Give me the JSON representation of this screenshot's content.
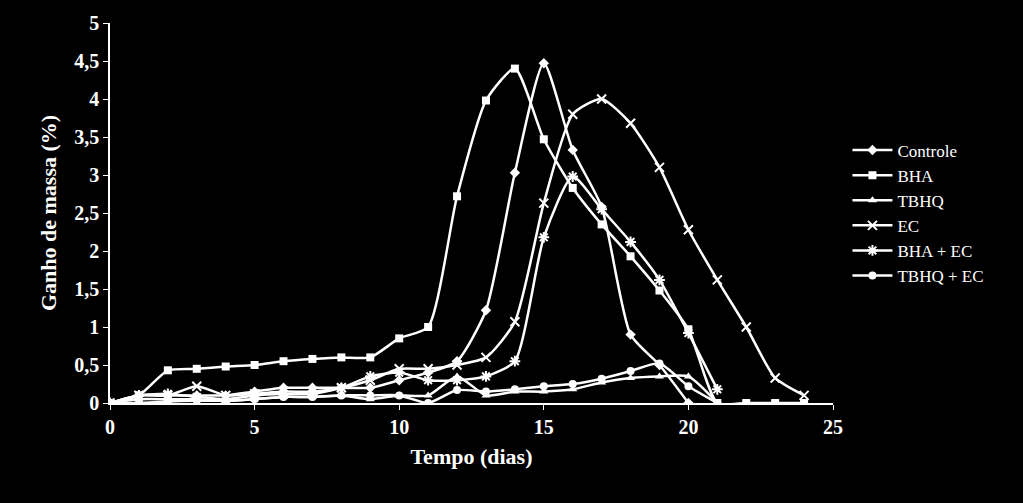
{
  "chart_data": {
    "type": "line",
    "x_label": "Tempo (dias)",
    "y_label": "Ganho de massa (%)",
    "xlim": [
      0,
      25
    ],
    "xticks": [
      0,
      5,
      10,
      15,
      20,
      25
    ],
    "ylim": [
      0,
      5
    ],
    "yticks": [
      0,
      {
        "value": 0.5,
        "label": "0,5"
      },
      1,
      {
        "value": 1.5,
        "label": "1,5"
      },
      2,
      {
        "value": 2.5,
        "label": "2,5"
      },
      3,
      {
        "value": 3.5,
        "label": "3,5"
      },
      4,
      {
        "value": 4.5,
        "label": "4,5"
      },
      5
    ],
    "grid": false,
    "legend": "right",
    "series": [
      {
        "name": "Controle",
        "color": "#ffffff",
        "marker": "diamond",
        "x": [
          0,
          1,
          2,
          3,
          4,
          5,
          6,
          7,
          8,
          9,
          10,
          11,
          12,
          13,
          14,
          15,
          16,
          17,
          18,
          19,
          20
        ],
        "values": [
          0,
          0.1,
          0.1,
          0.1,
          0.1,
          0.15,
          0.2,
          0.2,
          0.2,
          0.2,
          0.3,
          0.4,
          0.55,
          1.22,
          3.03,
          4.47,
          3.33,
          2.58,
          0.9,
          0.5,
          0
        ]
      },
      {
        "name": "BHA",
        "color": "#ffffff",
        "marker": "square",
        "x": [
          0,
          1,
          2,
          3,
          4,
          5,
          6,
          7,
          8,
          9,
          10,
          11,
          12,
          13,
          14,
          15,
          16,
          17,
          18,
          19,
          20,
          21,
          22,
          23,
          24
        ],
        "values": [
          0,
          0.1,
          0.43,
          0.45,
          0.48,
          0.5,
          0.55,
          0.58,
          0.6,
          0.6,
          0.85,
          1.0,
          2.72,
          3.98,
          4.4,
          3.47,
          2.83,
          2.35,
          1.93,
          1.48,
          0.97,
          0,
          0,
          0,
          0
        ]
      },
      {
        "name": "TBHQ",
        "color": "#ffffff",
        "marker": "triangle",
        "x": [
          0,
          1,
          2,
          3,
          4,
          5,
          6,
          7,
          8,
          9,
          10,
          11,
          12,
          13,
          14,
          15,
          16,
          17,
          18,
          19,
          20,
          21
        ],
        "values": [
          0,
          0.05,
          0.05,
          0.05,
          0.03,
          0.05,
          0.08,
          0.08,
          0.1,
          0.05,
          0.1,
          0.1,
          0.35,
          0.1,
          0.15,
          0.15,
          0.18,
          0.27,
          0.33,
          0.35,
          0.35,
          0
        ]
      },
      {
        "name": "EC",
        "color": "#ffffff",
        "marker": "x",
        "x": [
          0,
          1,
          2,
          3,
          4,
          5,
          6,
          7,
          8,
          9,
          10,
          11,
          12,
          13,
          14,
          15,
          16,
          17,
          18,
          19,
          20,
          21,
          22,
          23,
          24
        ],
        "values": [
          0,
          0.1,
          0.1,
          0.22,
          0.1,
          0.12,
          0.15,
          0.15,
          0.2,
          0.3,
          0.45,
          0.45,
          0.5,
          0.6,
          1.07,
          2.63,
          3.8,
          4.0,
          3.68,
          3.1,
          2.28,
          1.62,
          1.0,
          0.33,
          0.1
        ]
      },
      {
        "name": "BHA + EC",
        "color": "#ffffff",
        "marker": "asterisk",
        "x": [
          0,
          1,
          2,
          3,
          4,
          5,
          6,
          7,
          8,
          9,
          10,
          11,
          12,
          13,
          14,
          15,
          16,
          17,
          18,
          19,
          20,
          21
        ],
        "values": [
          0,
          0.1,
          0.12,
          0.08,
          0.05,
          0.1,
          0.12,
          0.12,
          0.2,
          0.35,
          0.4,
          0.3,
          0.3,
          0.35,
          0.55,
          2.18,
          2.98,
          2.55,
          2.12,
          1.62,
          0.92,
          0.18
        ]
      },
      {
        "name": "TBHQ + EC",
        "color": "#ffffff",
        "marker": "circle",
        "x": [
          0,
          1,
          2,
          3,
          4,
          5,
          6,
          7,
          8,
          9,
          10,
          11,
          12,
          13,
          14,
          15,
          16,
          17,
          18,
          19,
          20,
          21
        ],
        "values": [
          0,
          0,
          0.02,
          0.03,
          0.03,
          0.05,
          0.08,
          0.08,
          0.1,
          0.1,
          0.1,
          0,
          0.17,
          0.15,
          0.18,
          0.22,
          0.25,
          0.32,
          0.42,
          0.52,
          0.22,
          0
        ]
      }
    ]
  }
}
